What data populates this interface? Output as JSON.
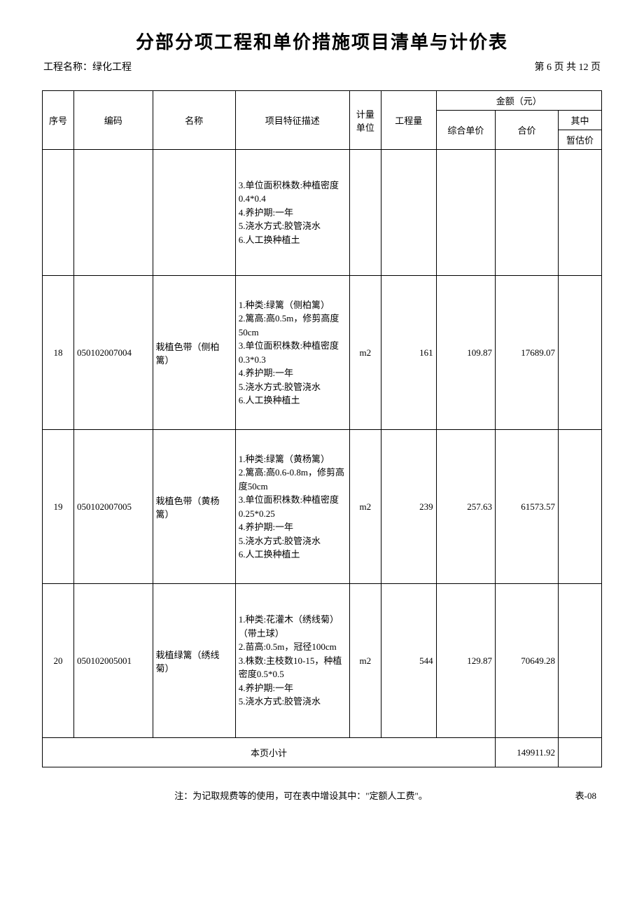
{
  "title": "分部分项工程和单价措施项目清单与计价表",
  "meta": {
    "project_label": "工程名称：",
    "project_name": "绿化工程",
    "page_info": "第  6  页  共  12  页"
  },
  "header": {
    "seq": "序号",
    "code": "编码",
    "name": "名称",
    "desc": "项目特征描述",
    "unit": "计量单位",
    "qty": "工程量",
    "amount_group": "金额（元）",
    "unit_price": "综合单价",
    "total": "合价",
    "of_which": "其中",
    "estimate": "暂估价"
  },
  "rows": [
    {
      "seq": "",
      "code": "",
      "name": "",
      "desc": "3.单位面积株数:种植密度0.4*0.4\n4.养护期:一年\n5.浇水方式:胶管浇水\n6.人工换种植土",
      "unit": "",
      "qty": "",
      "unit_price": "",
      "total": "",
      "estimate": ""
    },
    {
      "seq": "18",
      "code": "050102007004",
      "name": "栽植色带（侧柏篱）",
      "desc": "1.种类:绿篱（侧柏篱）\n2.篱高:高0.5m，修剪高度50cm\n3.单位面积株数:种植密度0.3*0.3\n4.养护期:一年\n5.浇水方式:胶管浇水\n6.人工换种植土",
      "unit": "m2",
      "qty": "161",
      "unit_price": "109.87",
      "total": "17689.07",
      "estimate": ""
    },
    {
      "seq": "19",
      "code": "050102007005",
      "name": "栽植色带（黄杨篱）",
      "desc": "1.种类:绿篱（黄杨篱）\n2.篱高:高0.6-0.8m，修剪高度50cm\n3.单位面积株数:种植密度0.25*0.25\n4.养护期:一年\n5.浇水方式:胶管浇水\n6.人工换种植土",
      "unit": "m2",
      "qty": "239",
      "unit_price": "257.63",
      "total": "61573.57",
      "estimate": ""
    },
    {
      "seq": "20",
      "code": "050102005001",
      "name": "栽植绿篱（绣线菊）",
      "desc": "1.种类:花灌木（绣线菊）（带土球）\n2.苗高:0.5m，冠径100cm\n3.株数:主枝数10-15，种植密度0.5*0.5\n4.养护期:一年\n5.浇水方式:胶管浇水",
      "unit": "m2",
      "qty": "544",
      "unit_price": "129.87",
      "total": "70649.28",
      "estimate": ""
    }
  ],
  "subtotal": {
    "label": "本页小计",
    "total": "149911.92"
  },
  "footnote": {
    "note": "注：为记取规费等的使用，可在表中增设其中：\"定额人工费\"。",
    "form_no": "表-08"
  }
}
